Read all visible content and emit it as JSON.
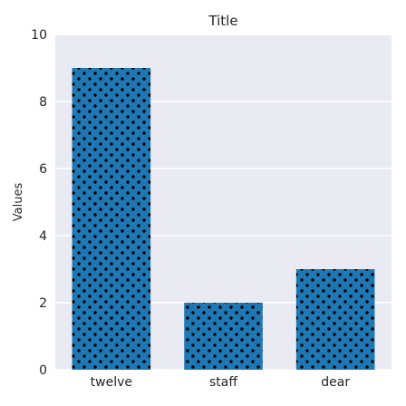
{
  "chart_data": {
    "type": "bar",
    "title": "Title",
    "xlabel": "",
    "ylabel": "Values",
    "categories": [
      "twelve",
      "staff",
      "dear"
    ],
    "values": [
      9,
      2,
      3
    ],
    "ylim": [
      0,
      10
    ],
    "yticks": [
      0,
      2,
      4,
      6,
      8,
      10
    ],
    "grid": true,
    "legend": "none",
    "colors": {
      "bar": "#1f77b4",
      "hatch_dot": "#000000",
      "plot_background": "#eaeaf2",
      "grid": "#ffffff",
      "text": "#262626"
    }
  }
}
